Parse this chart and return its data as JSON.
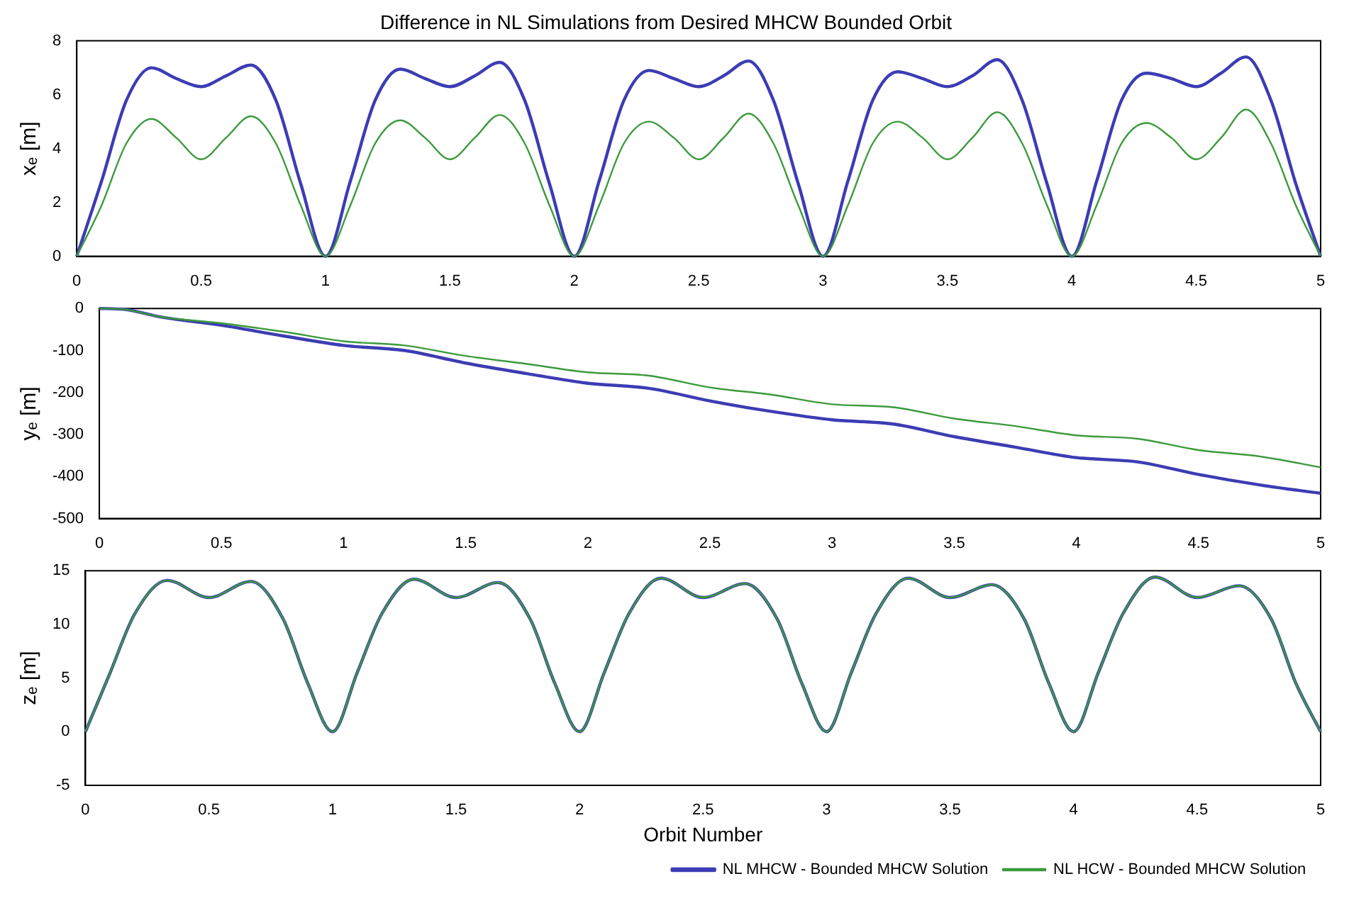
{
  "chart_data": [
    {
      "type": "line",
      "title": "Difference in NL Simulations from Desired MHCW Bounded Orbit",
      "ylabel": "xₑ [m]",
      "xlim": [
        0,
        5
      ],
      "xticks": [
        0,
        0.5,
        1,
        1.5,
        2,
        2.5,
        3,
        3.5,
        4,
        4.5,
        5
      ],
      "ylim": [
        0,
        8
      ],
      "yticks": [
        0,
        2,
        4,
        6,
        8
      ],
      "grid": false,
      "legend": false,
      "series": [
        {
          "color": "#3c3cb4",
          "x": [
            0,
            0.1,
            0.2,
            0.3,
            0.4,
            0.5,
            0.6,
            0.7,
            0.8,
            0.9,
            1,
            1.1,
            1.2,
            1.3,
            1.4,
            1.5,
            1.6,
            1.7,
            1.8,
            1.9,
            2,
            2.1,
            2.2,
            2.3,
            2.4,
            2.5,
            2.6,
            2.7,
            2.8,
            2.9,
            3,
            3.1,
            3.2,
            3.3,
            3.4,
            3.5,
            3.6,
            3.7,
            3.8,
            3.9,
            4,
            4.1,
            4.2,
            4.3,
            4.4,
            4.5,
            4.6,
            4.7,
            4.8,
            4.9,
            5
          ],
          "values": [
            0,
            2.8,
            5.8,
            7.0,
            6.6,
            6.3,
            6.7,
            7.1,
            5.8,
            2.7,
            0,
            2.8,
            5.8,
            6.95,
            6.6,
            6.3,
            6.7,
            7.2,
            5.8,
            2.7,
            0,
            2.8,
            5.8,
            6.9,
            6.6,
            6.3,
            6.7,
            7.25,
            5.8,
            2.7,
            0,
            2.8,
            5.8,
            6.85,
            6.6,
            6.3,
            6.7,
            7.3,
            5.8,
            2.7,
            0,
            2.8,
            5.8,
            6.8,
            6.6,
            6.3,
            6.8,
            7.4,
            5.8,
            2.7,
            0
          ]
        },
        {
          "color": "#3c9a3c",
          "x": [
            0,
            0.1,
            0.2,
            0.3,
            0.4,
            0.5,
            0.6,
            0.7,
            0.8,
            0.9,
            1,
            1.1,
            1.2,
            1.3,
            1.4,
            1.5,
            1.6,
            1.7,
            1.8,
            1.9,
            2,
            2.1,
            2.2,
            2.3,
            2.4,
            2.5,
            2.6,
            2.7,
            2.8,
            2.9,
            3,
            3.1,
            3.2,
            3.3,
            3.4,
            3.5,
            3.6,
            3.7,
            3.8,
            3.9,
            4,
            4.1,
            4.2,
            4.3,
            4.4,
            4.5,
            4.6,
            4.7,
            4.8,
            4.9,
            5
          ],
          "values": [
            0,
            1.9,
            4.2,
            5.1,
            4.4,
            3.6,
            4.4,
            5.2,
            4.2,
            1.9,
            0,
            1.9,
            4.2,
            5.05,
            4.4,
            3.6,
            4.4,
            5.25,
            4.2,
            1.9,
            0,
            1.9,
            4.2,
            5.0,
            4.4,
            3.6,
            4.4,
            5.3,
            4.2,
            1.9,
            0,
            1.9,
            4.2,
            5.0,
            4.4,
            3.6,
            4.4,
            5.35,
            4.2,
            1.9,
            0,
            1.9,
            4.2,
            4.95,
            4.4,
            3.6,
            4.4,
            5.45,
            4.2,
            1.9,
            0
          ]
        }
      ]
    },
    {
      "type": "line",
      "ylabel": "yₑ [m]",
      "xlim": [
        0,
        5
      ],
      "xticks": [
        0,
        0.5,
        1,
        1.5,
        2,
        2.5,
        3,
        3.5,
        4,
        4.5,
        5
      ],
      "ylim": [
        -500,
        0
      ],
      "yticks": [
        -500,
        -400,
        -300,
        -200,
        -100,
        0
      ],
      "grid": false,
      "legend": false,
      "series": [
        {
          "color": "#3c3cb4",
          "x": [
            0,
            0.1,
            0.25,
            0.5,
            0.75,
            1,
            1.25,
            1.5,
            1.75,
            2,
            2.25,
            2.5,
            2.75,
            3,
            3.25,
            3.5,
            3.75,
            4,
            4.25,
            4.5,
            4.75,
            5
          ],
          "values": [
            0,
            -2,
            -20,
            -40,
            -65,
            -88,
            -100,
            -130,
            -155,
            -178,
            -190,
            -220,
            -245,
            -265,
            -275,
            -305,
            -330,
            -355,
            -365,
            -395,
            -420,
            -440
          ]
        },
        {
          "color": "#3c9a3c",
          "x": [
            0,
            0.1,
            0.25,
            0.5,
            0.75,
            1,
            1.25,
            1.5,
            1.75,
            2,
            2.25,
            2.5,
            2.75,
            3,
            3.25,
            3.5,
            3.75,
            4,
            4.25,
            4.5,
            4.75,
            5
          ],
          "values": [
            0,
            -2,
            -20,
            -35,
            -55,
            -78,
            -88,
            -113,
            -132,
            -152,
            -160,
            -188,
            -205,
            -228,
            -235,
            -262,
            -280,
            -302,
            -310,
            -337,
            -352,
            -378
          ]
        }
      ]
    },
    {
      "type": "line",
      "xlabel": "Orbit Number",
      "ylabel": "zₑ [m]",
      "xlim": [
        0,
        5
      ],
      "xticks": [
        0,
        0.5,
        1,
        1.5,
        2,
        2.5,
        3,
        3.5,
        4,
        4.5,
        5
      ],
      "ylim": [
        -5,
        15
      ],
      "yticks": [
        -5,
        0,
        5,
        10,
        15
      ],
      "grid": false,
      "legend": "bottom right",
      "series": [
        {
          "name": "NL MHCW - Bounded MHCW Solution",
          "color": "#3c3cb4",
          "x": [
            0,
            0.1,
            0.2,
            0.33,
            0.5,
            0.67,
            0.8,
            0.9,
            1,
            1.1,
            1.2,
            1.33,
            1.5,
            1.67,
            1.8,
            1.9,
            2,
            2.1,
            2.2,
            2.33,
            2.5,
            2.67,
            2.8,
            2.9,
            3,
            3.1,
            3.2,
            3.33,
            3.5,
            3.67,
            3.8,
            3.9,
            4,
            4.1,
            4.2,
            4.33,
            4.5,
            4.67,
            4.8,
            4.9,
            5
          ],
          "values": [
            0,
            5.5,
            11,
            14.1,
            12.5,
            14,
            10.5,
            4.5,
            0,
            5.5,
            11,
            14.2,
            12.5,
            13.9,
            10.5,
            4.5,
            0,
            5.5,
            11,
            14.3,
            12.5,
            13.8,
            10.5,
            4.5,
            0,
            5.5,
            11,
            14.3,
            12.5,
            13.7,
            10.5,
            4.5,
            0,
            5.5,
            11,
            14.4,
            12.5,
            13.6,
            10.5,
            4.5,
            0
          ]
        },
        {
          "name": "NL HCW - Bounded MHCW Solution",
          "color": "#3c9a3c",
          "x": [
            0,
            0.1,
            0.2,
            0.33,
            0.5,
            0.67,
            0.8,
            0.9,
            1,
            1.1,
            1.2,
            1.33,
            1.5,
            1.67,
            1.8,
            1.9,
            2,
            2.1,
            2.2,
            2.33,
            2.5,
            2.67,
            2.8,
            2.9,
            3,
            3.1,
            3.2,
            3.33,
            3.5,
            3.67,
            3.8,
            3.9,
            4,
            4.1,
            4.2,
            4.33,
            4.5,
            4.67,
            4.8,
            4.9,
            5
          ],
          "values": [
            0,
            5.5,
            11,
            14.1,
            12.5,
            14,
            10.5,
            4.5,
            0,
            5.5,
            11,
            14.2,
            12.5,
            13.9,
            10.5,
            4.5,
            0,
            5.5,
            11,
            14.3,
            12.5,
            13.8,
            10.5,
            4.5,
            0,
            5.5,
            11,
            14.3,
            12.5,
            13.7,
            10.5,
            4.5,
            0,
            5.5,
            11,
            14.4,
            12.5,
            13.6,
            10.5,
            4.5,
            0
          ]
        }
      ]
    }
  ]
}
